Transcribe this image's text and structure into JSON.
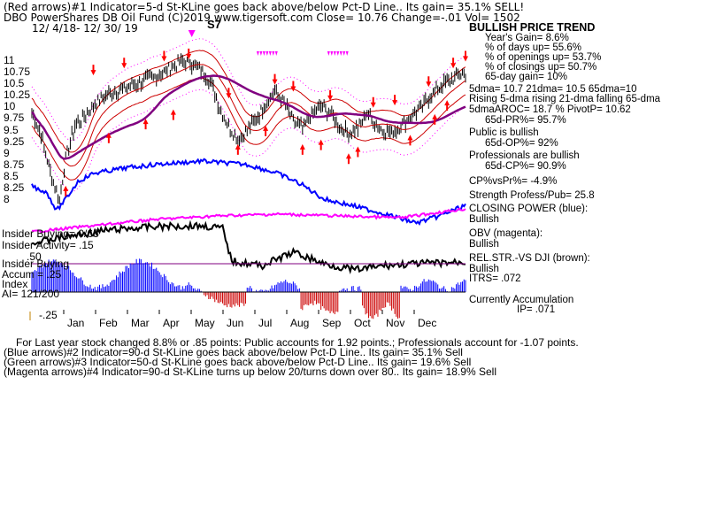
{
  "header": {
    "line1": "(Red arrows)#1 Indicator=5-d St-KLine goes back above/below Pct-D Line.. Its gain= 35.1% SELL!",
    "line2": "DBO   PowerShares DB Oil Fund  (C)2019 www.tigersoft.com     Close=  10.76  Change=-.01  Vol= 1502",
    "line3": "12/ 4/18- 12/ 30/ 19"
  },
  "peak_label": "S7",
  "left_labels": {
    "insider_buying": "Insider Buying= 0/65",
    "insider_accum": "Insider Activity= .15",
    "insider_buying2": "Insider Buying",
    "accum": "Accum = .25",
    "index": "Index",
    "ai": "AI= 121/200",
    "val_50": ".50",
    "val_neg25": "-.25"
  },
  "info": {
    "title": "BULLISH PRICE TREND",
    "years_gain": "Year's Gain= 8.6%",
    "days_up": "% of days up= 55.6%",
    "openings_up": "% of openings up= 53.7%",
    "closings_up": "% of closings up= 50.7%",
    "gain65": "65-day gain= 10%",
    "dma": "5dma= 10.7 21dma= 10.5 65dma=10",
    "rising": "Rising 5-dma rising 21-dma falling 65-dma",
    "aroc": "5dmaAROC= 18.7  %  PivotP= 10.62",
    "pr65": "65d-PR%= 95.7%",
    "public": "Public is bullish",
    "op65": "65d-OP%= 92%",
    "pros": "Professionals are bullish",
    "cp65": "65d-CP%= 90.9%",
    "cpvspr": "CP%vsPr%= -4.9%",
    "strength": "Strength Profess/Pub= 25.8",
    "closing_power": "CLOSING POWER (blue):",
    "bullish1": "Bullish",
    "obv": "OBV (magenta):",
    "bullish2": "Bullish",
    "relstr": "REL.STR.-VS DJI (brown):",
    "bullish3": "Bullish",
    "itrs": "ITRS= .072",
    "current_accum": "Currently Accumulation",
    "ip": "IP= .071"
  },
  "footer": {
    "line1": "For Last year stock changed  8.8% or  .85 points:  Public accounts for  1.92 points.;  Professionals account for -1.07 points.",
    "line2": "(Blue arrows)#2 Indicator=90-d St-KLine goes back above/below Pct-D Line.. Its gain= 35.1% Sell",
    "line3": "(Green arrows)#3 Indicator=50-d St-KLine goes back above/below Pct-D Line.. Its gain= 19.6% Sell",
    "line4": "(Magenta arrows)#4 Indicator=90-d St-KLine turns up below 20/turns down over 80.. Its gain= 18.9% Sell"
  },
  "colors": {
    "price": "#000000",
    "bb": "#ff00ff",
    "ma21": "#cc0000",
    "ma65": "#800080",
    "closing_power": "#0000ff",
    "obv": "#ff00ff",
    "relstr": "#000000",
    "accum_pos": "#0000ff",
    "accum_neg": "#cc0000",
    "arrow": "#ff0000",
    "magenta_arrow": "#ff00ff"
  },
  "chart_data": {
    "type": "line",
    "title": "DBO   PowerShares DB Oil Fund",
    "y_ticks": [
      "11",
      "10.75",
      "10.5",
      "10.25",
      "10",
      "9.75",
      "9.5",
      "9.25",
      "9",
      "8.75",
      "8.5",
      "8.25",
      "8"
    ],
    "ylim": [
      8,
      11.25
    ],
    "months": [
      "Jan",
      "Feb",
      "Mar",
      "Apr",
      "May",
      "Jun",
      "Jul",
      "Aug",
      "Sep",
      "Oct",
      "Nov",
      "Dec"
    ],
    "price_key": [
      [
        0,
        9.9
      ],
      [
        6,
        9.4
      ],
      [
        12,
        8.6
      ],
      [
        18,
        8.0
      ],
      [
        22,
        8.9
      ],
      [
        28,
        9.6
      ],
      [
        34,
        9.8
      ],
      [
        42,
        10.1
      ],
      [
        50,
        10.3
      ],
      [
        60,
        10.4
      ],
      [
        70,
        10.55
      ],
      [
        80,
        10.65
      ],
      [
        90,
        10.85
      ],
      [
        98,
        11.0
      ],
      [
        105,
        10.95
      ],
      [
        112,
        10.75
      ],
      [
        117,
        10.5
      ],
      [
        122,
        10.0
      ],
      [
        128,
        9.6
      ],
      [
        134,
        9.3
      ],
      [
        140,
        9.5
      ],
      [
        146,
        9.75
      ],
      [
        152,
        10.1
      ],
      [
        158,
        10.35
      ],
      [
        164,
        10.1
      ],
      [
        170,
        9.7
      ],
      [
        176,
        9.55
      ],
      [
        182,
        9.85
      ],
      [
        188,
        10.0
      ],
      [
        194,
        9.9
      ],
      [
        200,
        9.6
      ],
      [
        206,
        9.45
      ],
      [
        212,
        9.55
      ],
      [
        218,
        9.9
      ],
      [
        222,
        9.7
      ],
      [
        228,
        9.5
      ],
      [
        234,
        9.45
      ],
      [
        240,
        9.6
      ],
      [
        246,
        9.8
      ],
      [
        252,
        9.95
      ],
      [
        258,
        10.2
      ],
      [
        264,
        10.4
      ],
      [
        270,
        10.55
      ],
      [
        276,
        10.65
      ],
      [
        282,
        10.76
      ]
    ],
    "series": [
      {
        "name": "CLOSING POWER (blue)"
      },
      {
        "name": "OBV (magenta)"
      },
      {
        "name": "REL.STR.-VS DJI (brown)"
      }
    ]
  }
}
